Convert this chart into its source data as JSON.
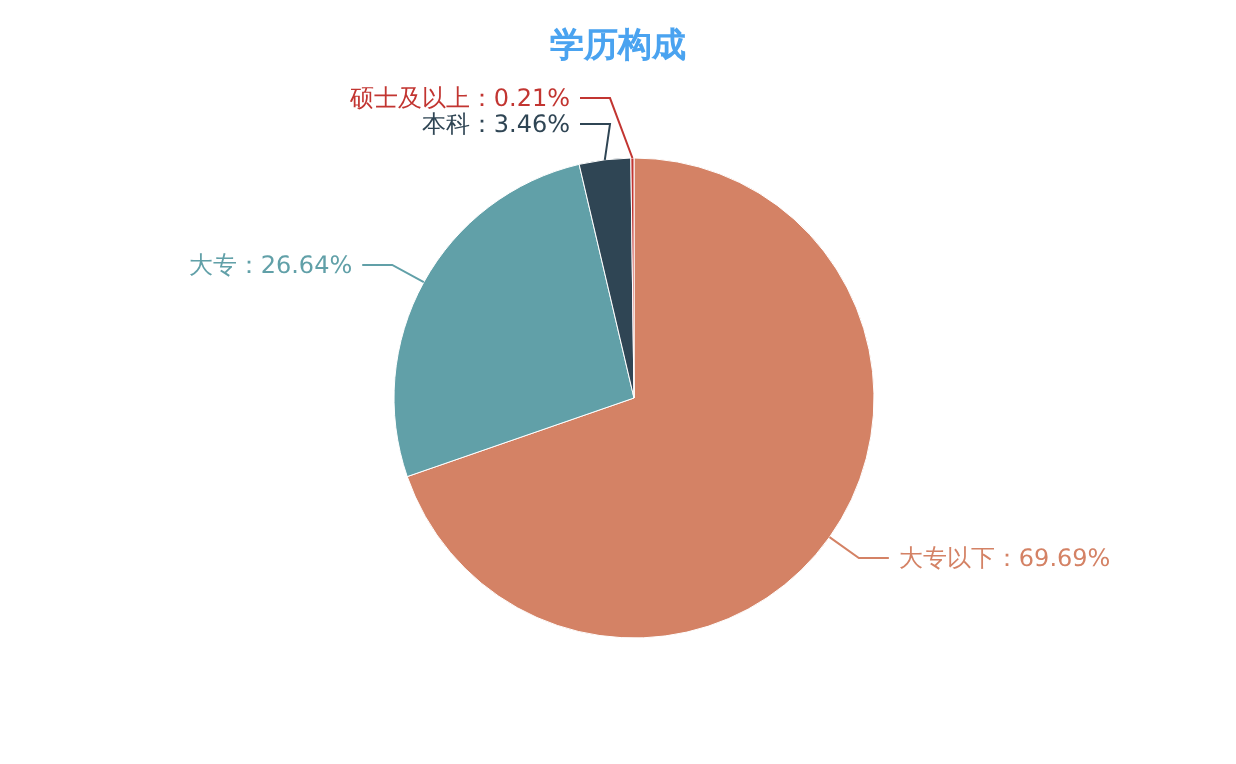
{
  "chart_data": {
    "type": "pie",
    "title": "学历构成",
    "categories": [
      "大专以下",
      "大专",
      "本科",
      "硕士及以上"
    ],
    "values": [
      69.69,
      26.64,
      3.46,
      0.21
    ],
    "colors": [
      "#d48265",
      "#61a0a8",
      "#2f4554",
      "#c23531"
    ],
    "value_labels": [
      "69.69%",
      "26.64%",
      "3.46%",
      "0.21%"
    ]
  }
}
